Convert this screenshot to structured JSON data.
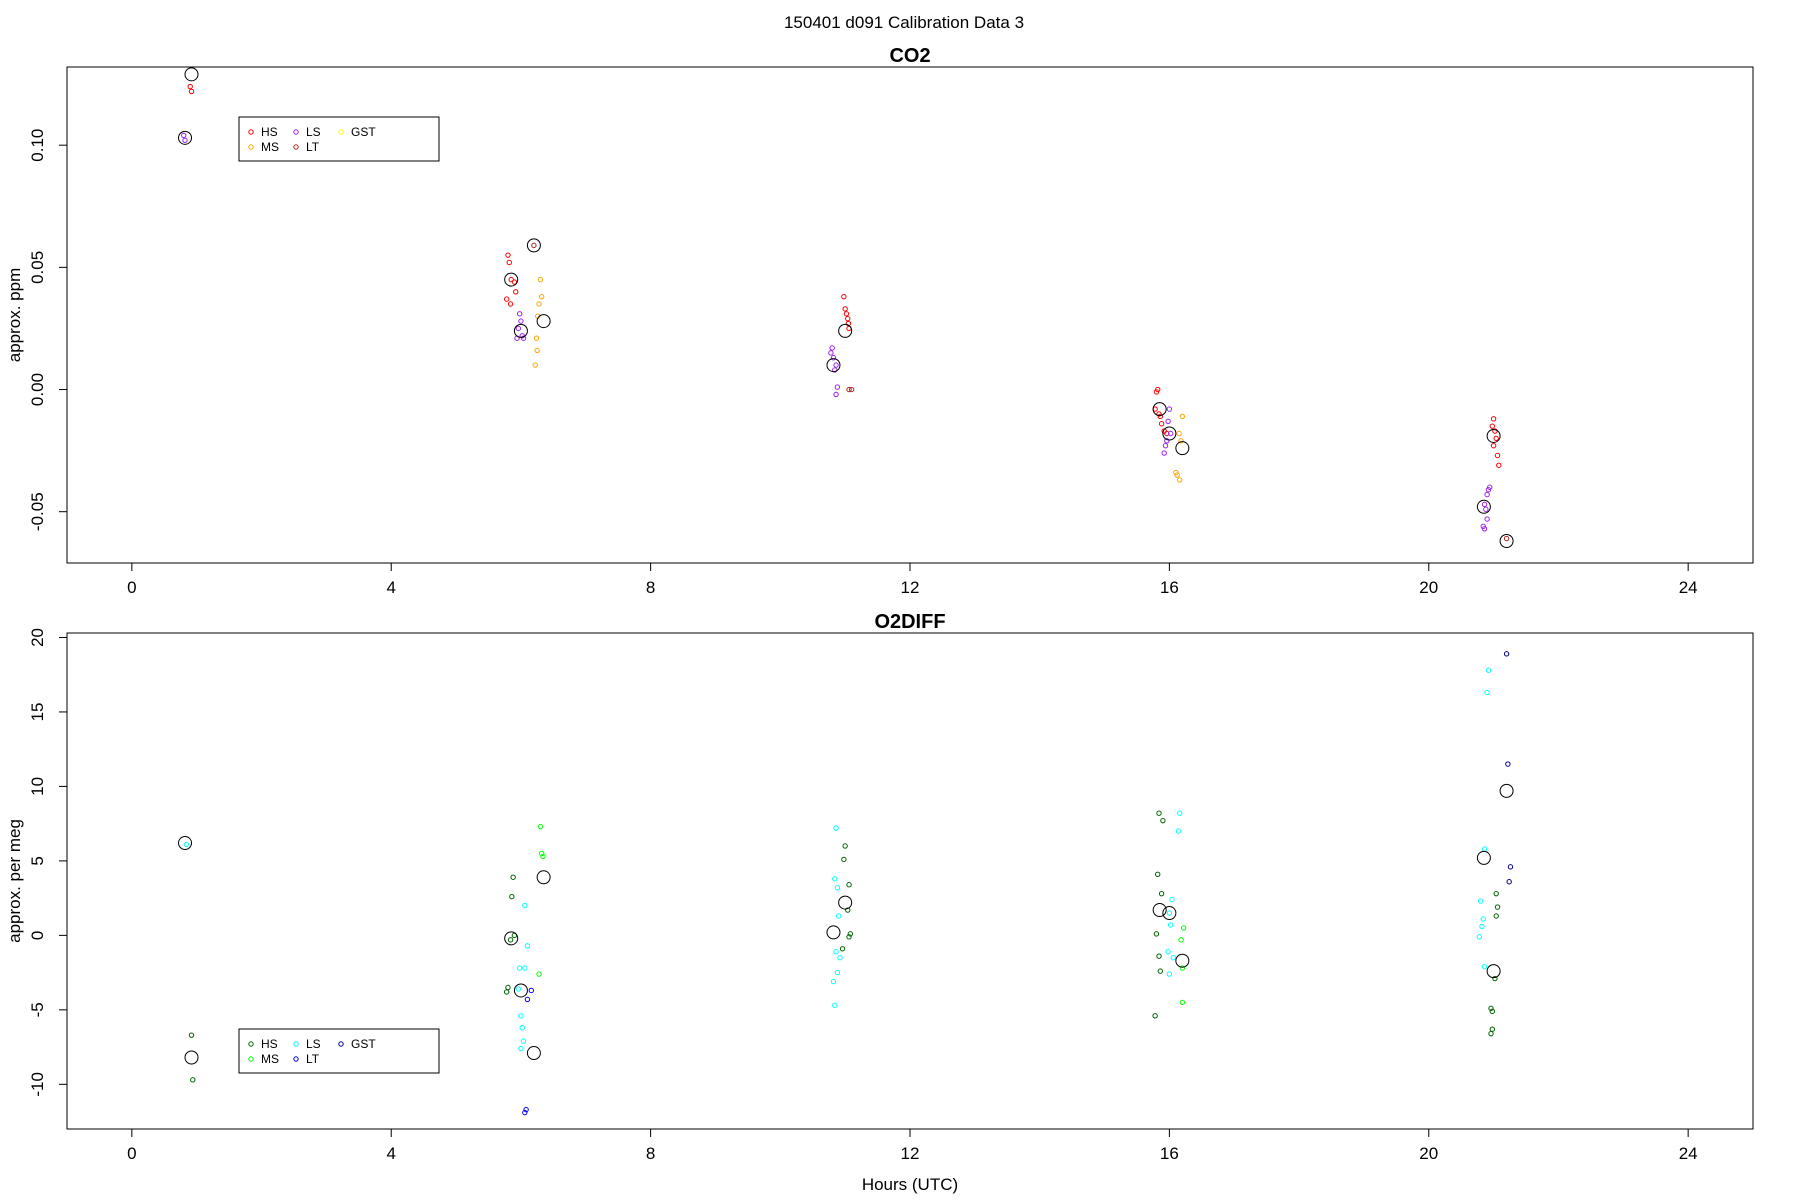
{
  "suptitle": "150401   d091   Calibration Data 3",
  "chart_data": [
    {
      "type": "scatter",
      "title": "CO2",
      "xlabel": "",
      "ylabel": "approx. ppm",
      "xlim": [
        -1.0,
        25.0
      ],
      "ylim": [
        -0.071,
        0.132
      ],
      "xticks": [
        0,
        4,
        8,
        12,
        16,
        20,
        24
      ],
      "yticks": [
        -0.05,
        0.0,
        0.05,
        0.1
      ],
      "ytick_labels": [
        "-0.05",
        "0.00",
        "0.05",
        "0.10"
      ],
      "legend": {
        "position": "top-left",
        "entries": [
          {
            "label": "HS",
            "color": "#ff0000"
          },
          {
            "label": "MS",
            "color": "#ffa500"
          },
          {
            "label": "LS",
            "color": "#a020f0"
          },
          {
            "label": "LT",
            "color": "#b22222"
          },
          {
            "label": "GST",
            "color": "#ffff00"
          }
        ]
      },
      "series": [
        {
          "name": "HS",
          "color": "#ff0000",
          "points": [
            [
              0.9,
              0.124
            ],
            [
              0.92,
              0.122
            ],
            [
              5.8,
              0.055
            ],
            [
              5.82,
              0.052
            ],
            [
              5.85,
              0.045
            ],
            [
              5.9,
              0.044
            ],
            [
              5.92,
              0.04
            ],
            [
              5.78,
              0.037
            ],
            [
              5.84,
              0.035
            ],
            [
              10.98,
              0.038
            ],
            [
              11.0,
              0.033
            ],
            [
              11.02,
              0.031
            ],
            [
              11.04,
              0.029
            ],
            [
              11.05,
              0.027
            ],
            [
              11.06,
              0.025
            ],
            [
              15.8,
              -0.001
            ],
            [
              15.82,
              0.0
            ],
            [
              15.78,
              -0.008
            ],
            [
              15.84,
              -0.01
            ],
            [
              15.86,
              -0.011
            ],
            [
              15.88,
              -0.014
            ],
            [
              15.92,
              -0.017
            ],
            [
              15.96,
              -0.018
            ],
            [
              21.0,
              -0.012
            ],
            [
              20.98,
              -0.015
            ],
            [
              21.02,
              -0.017
            ],
            [
              21.04,
              -0.02
            ],
            [
              21.0,
              -0.023
            ],
            [
              21.06,
              -0.027
            ],
            [
              21.08,
              -0.031
            ]
          ]
        },
        {
          "name": "MS",
          "color": "#ffa500",
          "points": [
            [
              6.3,
              0.045
            ],
            [
              6.32,
              0.038
            ],
            [
              6.28,
              0.035
            ],
            [
              6.26,
              0.03
            ],
            [
              6.24,
              0.021
            ],
            [
              6.25,
              0.016
            ],
            [
              6.22,
              0.01
            ],
            [
              16.2,
              -0.011
            ],
            [
              16.15,
              -0.018
            ],
            [
              16.18,
              -0.021
            ],
            [
              16.1,
              -0.034
            ],
            [
              16.12,
              -0.035
            ],
            [
              16.16,
              -0.037
            ]
          ]
        },
        {
          "name": "LS",
          "color": "#a020f0",
          "points": [
            [
              0.8,
              0.104
            ],
            [
              0.82,
              0.102
            ],
            [
              5.98,
              0.031
            ],
            [
              6.0,
              0.028
            ],
            [
              5.96,
              0.025
            ],
            [
              6.02,
              0.022
            ],
            [
              5.94,
              0.021
            ],
            [
              6.04,
              0.021
            ],
            [
              10.8,
              0.017
            ],
            [
              10.78,
              0.015
            ],
            [
              10.82,
              0.013
            ],
            [
              10.86,
              0.01
            ],
            [
              10.84,
              0.008
            ],
            [
              10.88,
              0.001
            ],
            [
              10.86,
              -0.002
            ],
            [
              16.0,
              -0.008
            ],
            [
              15.98,
              -0.013
            ],
            [
              16.02,
              -0.018
            ],
            [
              15.96,
              -0.021
            ],
            [
              15.94,
              -0.023
            ],
            [
              15.92,
              -0.026
            ],
            [
              20.94,
              -0.04
            ],
            [
              20.92,
              -0.041
            ],
            [
              20.9,
              -0.043
            ],
            [
              20.86,
              -0.047
            ],
            [
              20.88,
              -0.049
            ],
            [
              20.9,
              -0.053
            ],
            [
              20.84,
              -0.056
            ],
            [
              20.86,
              -0.057
            ]
          ]
        },
        {
          "name": "LT",
          "color": "#b22222",
          "points": [
            [
              6.2,
              0.059
            ],
            [
              11.1,
              0.0
            ],
            [
              11.06,
              0.0
            ],
            [
              21.2,
              -0.061
            ]
          ]
        }
      ],
      "means": [
        [
          0.92,
          0.129
        ],
        [
          0.82,
          0.103
        ],
        [
          5.85,
          0.045
        ],
        [
          6.0,
          0.024
        ],
        [
          6.2,
          0.059
        ],
        [
          6.35,
          0.028
        ],
        [
          10.82,
          0.01
        ],
        [
          11.0,
          0.024
        ],
        [
          15.85,
          -0.008
        ],
        [
          16.0,
          -0.018
        ],
        [
          16.2,
          -0.024
        ],
        [
          20.85,
          -0.048
        ],
        [
          21.0,
          -0.019
        ],
        [
          21.2,
          -0.062
        ]
      ]
    },
    {
      "type": "scatter",
      "title": "O2DIFF",
      "xlabel": "Hours (UTC)",
      "ylabel": "approx. per meg",
      "xlim": [
        -1.0,
        25.0
      ],
      "ylim": [
        -13.0,
        20.3
      ],
      "xticks": [
        0,
        4,
        8,
        12,
        16,
        20,
        24
      ],
      "yticks": [
        -10,
        -5,
        0,
        5,
        10,
        15,
        20
      ],
      "ytick_labels": [
        "-10",
        "-5",
        "0",
        "5",
        "10",
        "15",
        "20"
      ],
      "legend": {
        "position": "bottom-left",
        "entries": [
          {
            "label": "HS",
            "color": "#006400"
          },
          {
            "label": "MS",
            "color": "#00ff00"
          },
          {
            "label": "LS",
            "color": "#00ffff"
          },
          {
            "label": "LT",
            "color": "#0000ff"
          },
          {
            "label": "GST",
            "color": "#00008b"
          }
        ]
      },
      "series": [
        {
          "name": "HS",
          "color": "#006400",
          "points": [
            [
              0.92,
              -6.7
            ],
            [
              0.94,
              -9.7
            ],
            [
              5.88,
              3.9
            ],
            [
              5.86,
              2.6
            ],
            [
              5.9,
              0.0
            ],
            [
              5.84,
              -0.3
            ],
            [
              5.8,
              -3.5
            ],
            [
              5.78,
              -3.8
            ],
            [
              11.0,
              6.0
            ],
            [
              10.98,
              5.1
            ],
            [
              11.06,
              3.4
            ],
            [
              11.04,
              1.7
            ],
            [
              11.08,
              0.1
            ],
            [
              11.06,
              -0.1
            ],
            [
              10.96,
              -0.9
            ],
            [
              15.84,
              8.2
            ],
            [
              15.9,
              7.7
            ],
            [
              15.82,
              4.1
            ],
            [
              15.88,
              2.8
            ],
            [
              15.8,
              0.1
            ],
            [
              15.84,
              -1.4
            ],
            [
              15.86,
              -2.4
            ],
            [
              15.78,
              -5.4
            ],
            [
              21.04,
              2.8
            ],
            [
              21.06,
              1.9
            ],
            [
              21.04,
              1.3
            ],
            [
              21.02,
              -2.9
            ],
            [
              20.96,
              -4.9
            ],
            [
              20.98,
              -5.1
            ],
            [
              20.98,
              -6.3
            ],
            [
              20.96,
              -6.6
            ]
          ]
        },
        {
          "name": "MS",
          "color": "#00ff00",
          "points": [
            [
              6.3,
              7.3
            ],
            [
              6.32,
              5.5
            ],
            [
              6.34,
              5.3
            ],
            [
              6.28,
              -2.6
            ],
            [
              16.22,
              0.5
            ],
            [
              16.18,
              -0.3
            ],
            [
              16.2,
              -2.2
            ],
            [
              16.2,
              -4.5
            ]
          ]
        },
        {
          "name": "LS",
          "color": "#00ffff",
          "points": [
            [
              0.84,
              6.1
            ],
            [
              6.06,
              2.0
            ],
            [
              6.1,
              -0.7
            ],
            [
              5.98,
              -2.2
            ],
            [
              6.06,
              -2.2
            ],
            [
              5.96,
              -3.6
            ],
            [
              6.0,
              -5.4
            ],
            [
              6.02,
              -6.2
            ],
            [
              6.04,
              -7.1
            ],
            [
              6.0,
              -7.6
            ],
            [
              10.86,
              7.2
            ],
            [
              10.84,
              3.8
            ],
            [
              10.88,
              3.2
            ],
            [
              10.9,
              1.3
            ],
            [
              10.86,
              -1.1
            ],
            [
              10.92,
              -1.5
            ],
            [
              10.88,
              -2.5
            ],
            [
              10.82,
              -3.1
            ],
            [
              10.84,
              -4.7
            ],
            [
              16.16,
              8.2
            ],
            [
              16.14,
              7.0
            ],
            [
              16.04,
              2.4
            ],
            [
              16.0,
              1.5
            ],
            [
              16.02,
              0.7
            ],
            [
              15.98,
              -1.1
            ],
            [
              16.06,
              -1.5
            ],
            [
              16.0,
              -2.6
            ],
            [
              20.92,
              17.8
            ],
            [
              20.9,
              16.3
            ],
            [
              20.86,
              5.8
            ],
            [
              20.8,
              2.3
            ],
            [
              20.84,
              1.1
            ],
            [
              20.82,
              0.6
            ],
            [
              20.78,
              -0.1
            ],
            [
              20.86,
              -2.1
            ]
          ]
        },
        {
          "name": "LT",
          "color": "#0000ff",
          "points": [
            [
              6.1,
              -4.3
            ],
            [
              6.16,
              -3.7
            ],
            [
              6.08,
              -11.7
            ],
            [
              6.06,
              -11.9
            ]
          ]
        },
        {
          "name": "GST",
          "color": "#00008b",
          "points": [
            [
              21.2,
              18.9
            ],
            [
              21.22,
              11.5
            ],
            [
              21.26,
              4.6
            ],
            [
              21.24,
              3.6
            ]
          ]
        }
      ],
      "means": [
        [
          0.82,
          6.2
        ],
        [
          0.92,
          -8.2
        ],
        [
          5.85,
          -0.2
        ],
        [
          6.0,
          -3.7
        ],
        [
          6.2,
          -7.9
        ],
        [
          6.35,
          3.9
        ],
        [
          10.82,
          0.2
        ],
        [
          11.0,
          2.2
        ],
        [
          15.85,
          1.7
        ],
        [
          16.0,
          1.5
        ],
        [
          16.2,
          -1.7
        ],
        [
          20.85,
          5.2
        ],
        [
          21.0,
          -2.4
        ],
        [
          21.2,
          9.7
        ]
      ]
    }
  ]
}
